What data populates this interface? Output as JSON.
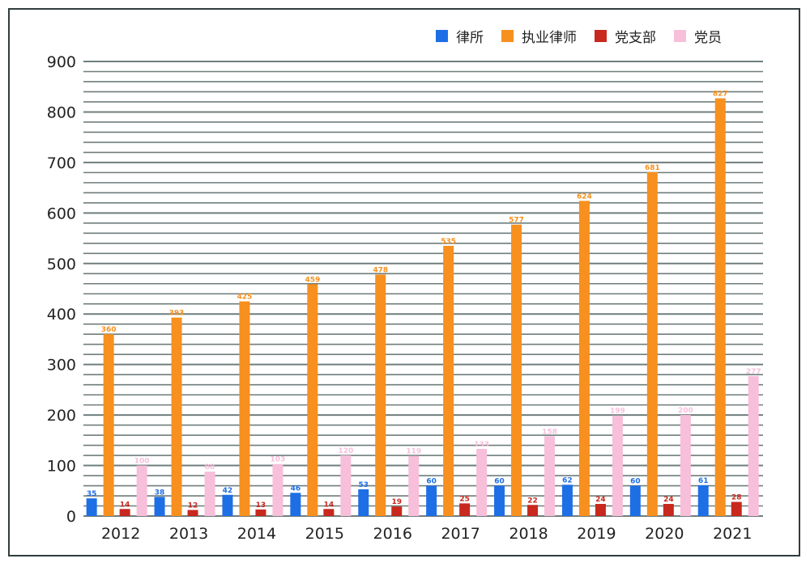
{
  "chart_data": {
    "type": "bar",
    "categories": [
      "2012",
      "2013",
      "2014",
      "2015",
      "2016",
      "2017",
      "2018",
      "2019",
      "2020",
      "2021"
    ],
    "series": [
      {
        "name": "律所",
        "color": "#1e6fe6",
        "values": [
          35,
          38,
          42,
          46,
          53,
          60,
          60,
          62,
          60,
          61
        ]
      },
      {
        "name": "执业律师",
        "color": "#f7901e",
        "values": [
          360,
          393,
          425,
          459,
          478,
          535,
          577,
          624,
          681,
          827
        ]
      },
      {
        "name": "党支部",
        "color": "#c8281e",
        "values": [
          14,
          12,
          13,
          14,
          19,
          25,
          22,
          24,
          24,
          28
        ]
      },
      {
        "name": "党员",
        "color": "#f7bfda",
        "values": [
          100,
          88,
          103,
          120,
          119,
          133,
          158,
          199,
          200,
          277
        ]
      }
    ],
    "y_ticks": [
      "0",
      "100",
      "200",
      "300",
      "400",
      "500",
      "600",
      "700",
      "800",
      "900"
    ],
    "ylim": [
      0,
      900
    ],
    "grid": true,
    "legend_position": "top-right"
  }
}
